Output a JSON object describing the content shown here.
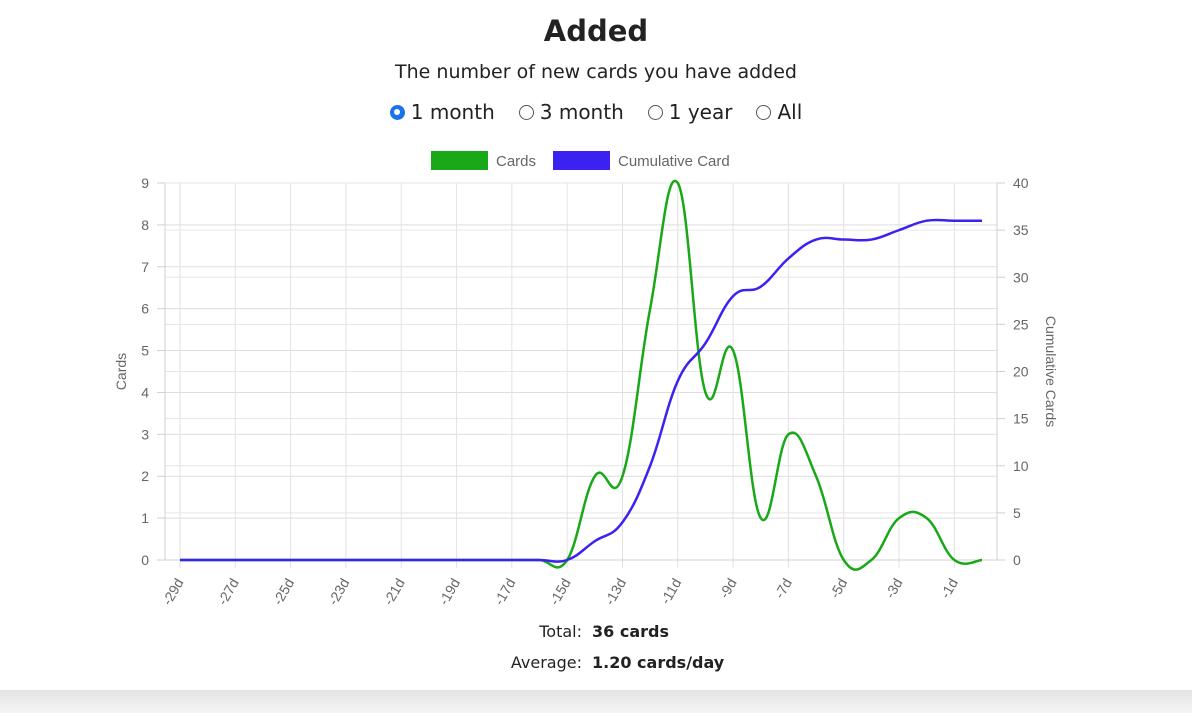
{
  "header": {
    "title": "Added",
    "subtitle": "The number of new cards you have added"
  },
  "range_options": [
    {
      "label": "1 month",
      "checked": true
    },
    {
      "label": "3 month",
      "checked": false
    },
    {
      "label": "1 year",
      "checked": false
    },
    {
      "label": "All",
      "checked": false
    }
  ],
  "chart_data": {
    "type": "line",
    "legend_position": "top-center",
    "grid": true,
    "x": [
      -29,
      -28,
      -27,
      -26,
      -25,
      -24,
      -23,
      -22,
      -21,
      -20,
      -19,
      -18,
      -17,
      -16,
      -15,
      -14,
      -13,
      -12,
      -11,
      -10,
      -9,
      -8,
      -7,
      -6,
      -5,
      -4,
      -3,
      -2,
      -1,
      0
    ],
    "x_tick_labels": [
      "-29d",
      "-27d",
      "-25d",
      "-23d",
      "-21d",
      "-19d",
      "-17d",
      "-15d",
      "-13d",
      "-11d",
      "-9d",
      "-7d",
      "-5d",
      "-3d",
      "-1d"
    ],
    "x_tick_values": [
      -29,
      -27,
      -25,
      -23,
      -21,
      -19,
      -17,
      -15,
      -13,
      -11,
      -9,
      -7,
      -5,
      -3,
      -1
    ],
    "series": [
      {
        "name": "Cards",
        "color": "#18a818",
        "axis": "left",
        "values": [
          0,
          0,
          0,
          0,
          0,
          0,
          0,
          0,
          0,
          0,
          0,
          0,
          0,
          0,
          0,
          2,
          2,
          6,
          9,
          4,
          5,
          1,
          3,
          2,
          0,
          0,
          1,
          1,
          0,
          0
        ]
      },
      {
        "name": "Cumulative Card",
        "color": "#3b22f0",
        "axis": "right",
        "values": [
          0,
          0,
          0,
          0,
          0,
          0,
          0,
          0,
          0,
          0,
          0,
          0,
          0,
          0,
          0,
          2,
          4,
          10,
          19,
          23,
          28,
          29,
          32,
          34,
          34,
          34,
          35,
          36,
          36,
          36
        ]
      }
    ],
    "y_left": {
      "label": "Cards",
      "min": 0,
      "max": 9,
      "ticks": [
        0,
        1,
        2,
        3,
        4,
        5,
        6,
        7,
        8,
        9
      ]
    },
    "y_right": {
      "label": "Cumulative Cards",
      "min": 0,
      "max": 40,
      "ticks": [
        0,
        5,
        10,
        15,
        20,
        25,
        30,
        35,
        40
      ]
    }
  },
  "stats": {
    "total_label": "Total:",
    "total_value": "36 cards",
    "average_label": "Average:",
    "average_value": "1.20 cards/day"
  }
}
